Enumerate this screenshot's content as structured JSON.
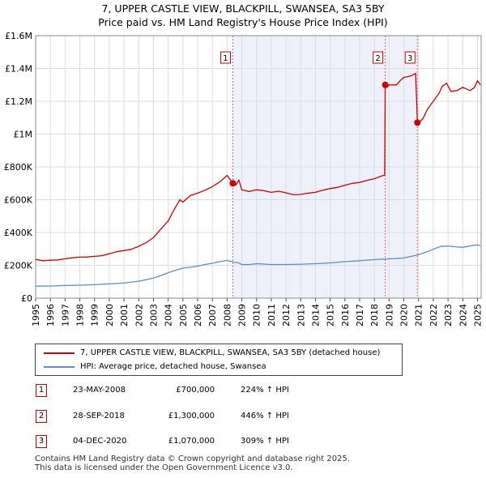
{
  "chart_data": {
    "type": "line",
    "title": "7, UPPER CASTLE VIEW, BLACKPILL, SWANSEA, SA3 5BY",
    "subtitle": "Price paid vs. HM Land Registry's House Price Index (HPI)",
    "xlim": [
      1995,
      2025.25
    ],
    "ylim": [
      0,
      1600000
    ],
    "y_ticks": [
      {
        "value": 0,
        "label": "£0"
      },
      {
        "value": 200000,
        "label": "£200K"
      },
      {
        "value": 400000,
        "label": "£400K"
      },
      {
        "value": 600000,
        "label": "£600K"
      },
      {
        "value": 800000,
        "label": "£800K"
      },
      {
        "value": 1000000,
        "label": "£1M"
      },
      {
        "value": 1200000,
        "label": "£1.2M"
      },
      {
        "value": 1400000,
        "label": "£1.4M"
      },
      {
        "value": 1600000,
        "label": "£1.6M"
      }
    ],
    "x_ticks": [
      "1995",
      "1996",
      "1997",
      "1998",
      "1999",
      "2000",
      "2001",
      "2002",
      "2003",
      "2004",
      "2005",
      "2006",
      "2007",
      "2008",
      "2009",
      "2010",
      "2011",
      "2012",
      "2013",
      "2014",
      "2015",
      "2016",
      "2017",
      "2018",
      "2019",
      "2020",
      "2021",
      "2022",
      "2023",
      "2024",
      "2025"
    ],
    "shaded_region": [
      2008.39,
      2020.92
    ],
    "series": [
      {
        "name": "7, UPPER CASTLE VIEW, BLACKPILL, SWANSEA, SA3 5BY (detached house)",
        "color": "#cc0000",
        "points": [
          [
            1995.0,
            236000
          ],
          [
            1995.5,
            228000
          ],
          [
            1996.0,
            231000
          ],
          [
            1996.5,
            233000
          ],
          [
            1997.0,
            240000
          ],
          [
            1997.5,
            246000
          ],
          [
            1998.0,
            250000
          ],
          [
            1998.5,
            251000
          ],
          [
            1999.0,
            255000
          ],
          [
            1999.5,
            259000
          ],
          [
            2000.0,
            270000
          ],
          [
            2000.5,
            283000
          ],
          [
            2001.0,
            290000
          ],
          [
            2001.5,
            298000
          ],
          [
            2002.0,
            316000
          ],
          [
            2002.5,
            338000
          ],
          [
            2003.0,
            370000
          ],
          [
            2003.5,
            420000
          ],
          [
            2004.0,
            470000
          ],
          [
            2004.5,
            555000
          ],
          [
            2004.8,
            600000
          ],
          [
            2005.0,
            585000
          ],
          [
            2005.5,
            625000
          ],
          [
            2006.0,
            640000
          ],
          [
            2006.5,
            658000
          ],
          [
            2007.0,
            680000
          ],
          [
            2007.5,
            708000
          ],
          [
            2008.0,
            748000
          ],
          [
            2008.39,
            700000
          ],
          [
            2008.6,
            690000
          ],
          [
            2008.8,
            720000
          ],
          [
            2009.0,
            660000
          ],
          [
            2009.5,
            650000
          ],
          [
            2010.0,
            660000
          ],
          [
            2010.5,
            655000
          ],
          [
            2011.0,
            645000
          ],
          [
            2011.5,
            652000
          ],
          [
            2012.0,
            642000
          ],
          [
            2012.5,
            630000
          ],
          [
            2013.0,
            632000
          ],
          [
            2013.5,
            640000
          ],
          [
            2014.0,
            645000
          ],
          [
            2014.5,
            658000
          ],
          [
            2015.0,
            668000
          ],
          [
            2015.5,
            675000
          ],
          [
            2016.0,
            688000
          ],
          [
            2016.5,
            700000
          ],
          [
            2017.0,
            705000
          ],
          [
            2017.5,
            718000
          ],
          [
            2018.0,
            728000
          ],
          [
            2018.5,
            745000
          ],
          [
            2018.7,
            750000
          ],
          [
            2018.74,
            1300000
          ],
          [
            2018.85,
            1285000
          ],
          [
            2019.0,
            1300000
          ],
          [
            2019.5,
            1300000
          ],
          [
            2019.8,
            1330000
          ],
          [
            2020.0,
            1345000
          ],
          [
            2020.5,
            1355000
          ],
          [
            2020.8,
            1370000
          ],
          [
            2020.92,
            1070000
          ],
          [
            2021.0,
            1065000
          ],
          [
            2021.3,
            1095000
          ],
          [
            2021.6,
            1150000
          ],
          [
            2022.0,
            1200000
          ],
          [
            2022.4,
            1250000
          ],
          [
            2022.6,
            1290000
          ],
          [
            2022.9,
            1310000
          ],
          [
            2023.2,
            1260000
          ],
          [
            2023.6,
            1265000
          ],
          [
            2024.0,
            1285000
          ],
          [
            2024.5,
            1265000
          ],
          [
            2024.8,
            1285000
          ],
          [
            2025.0,
            1325000
          ],
          [
            2025.2,
            1300000
          ]
        ]
      },
      {
        "name": "HPI: Average price, detached house, Swansea",
        "color": "#5b8dc8",
        "points": [
          [
            1995.0,
            73000
          ],
          [
            1996.0,
            74000
          ],
          [
            1997.0,
            77000
          ],
          [
            1998.0,
            79000
          ],
          [
            1999.0,
            82000
          ],
          [
            2000.0,
            87000
          ],
          [
            2001.0,
            92000
          ],
          [
            2002.0,
            103000
          ],
          [
            2003.0,
            122000
          ],
          [
            2003.5,
            138000
          ],
          [
            2004.0,
            155000
          ],
          [
            2004.5,
            170000
          ],
          [
            2005.0,
            183000
          ],
          [
            2005.5,
            188000
          ],
          [
            2006.0,
            195000
          ],
          [
            2006.5,
            205000
          ],
          [
            2007.0,
            213000
          ],
          [
            2007.5,
            222000
          ],
          [
            2008.0,
            230000
          ],
          [
            2008.39,
            220000
          ],
          [
            2008.8,
            215000
          ],
          [
            2009.0,
            205000
          ],
          [
            2009.5,
            205000
          ],
          [
            2010.0,
            210000
          ],
          [
            2011.0,
            205000
          ],
          [
            2012.0,
            205000
          ],
          [
            2013.0,
            207000
          ],
          [
            2014.0,
            210000
          ],
          [
            2015.0,
            215000
          ],
          [
            2016.0,
            222000
          ],
          [
            2017.0,
            228000
          ],
          [
            2018.0,
            235000
          ],
          [
            2018.74,
            238000
          ],
          [
            2019.0,
            240000
          ],
          [
            2019.5,
            241000
          ],
          [
            2020.0,
            245000
          ],
          [
            2020.5,
            255000
          ],
          [
            2020.92,
            262000
          ],
          [
            2021.5,
            280000
          ],
          [
            2022.0,
            298000
          ],
          [
            2022.5,
            315000
          ],
          [
            2023.0,
            318000
          ],
          [
            2023.5,
            313000
          ],
          [
            2024.0,
            310000
          ],
          [
            2024.5,
            318000
          ],
          [
            2025.0,
            325000
          ],
          [
            2025.2,
            320000
          ]
        ]
      }
    ],
    "sales": [
      {
        "marker": "1",
        "year": 2008.39,
        "price": 700000,
        "date": "23-MAY-2008",
        "price_label": "£700,000",
        "hpi": "224% ↑ HPI"
      },
      {
        "marker": "2",
        "year": 2018.74,
        "price": 1300000,
        "date": "28-SEP-2018",
        "price_label": "£1,300,000",
        "hpi": "446% ↑ HPI"
      },
      {
        "marker": "3",
        "year": 2020.92,
        "price": 1070000,
        "date": "04-DEC-2020",
        "price_label": "£1,070,000",
        "hpi": "309% ↑ HPI"
      }
    ]
  },
  "legend": {
    "red_label": "7, UPPER CASTLE VIEW, BLACKPILL, SWANSEA, SA3 5BY (detached house)",
    "blue_label": "HPI: Average price, detached house, Swansea"
  },
  "footer": {
    "line1": "Contains HM Land Registry data © Crown copyright and database right 2025.",
    "line2": "This data is licensed under the Open Government Licence v3.0."
  }
}
